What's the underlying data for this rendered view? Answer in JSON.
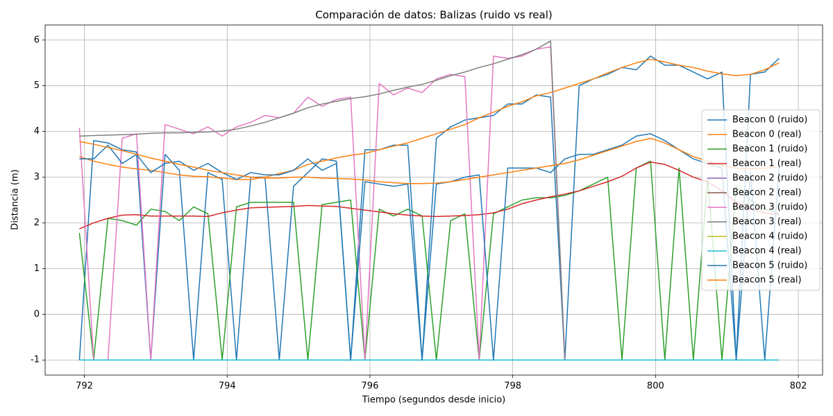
{
  "chart_data": {
    "type": "line",
    "title": "Comparación de datos: Balizas (ruido vs real)",
    "x_label": "Tiempo (segundos desde inicio)",
    "y_label": "Distancia (m)",
    "xlim": [
      791.45,
      802.34
    ],
    "ylim": [
      -1.33,
      6.33
    ],
    "xticks": [
      792,
      794,
      796,
      798,
      800,
      802
    ],
    "yticks": [
      -1,
      0,
      1,
      2,
      3,
      4,
      5,
      6
    ],
    "grid": true,
    "legend": "center right",
    "x": [
      791.93,
      792.13,
      792.33,
      792.53,
      792.73,
      792.93,
      793.13,
      793.33,
      793.53,
      793.73,
      793.93,
      794.13,
      794.33,
      794.53,
      794.73,
      794.93,
      795.13,
      795.33,
      795.53,
      795.73,
      795.93,
      796.13,
      796.33,
      796.53,
      796.73,
      796.93,
      797.13,
      797.33,
      797.53,
      797.73,
      797.93,
      798.13,
      798.33,
      798.53,
      798.73,
      798.93,
      799.13,
      799.33,
      799.53,
      799.73,
      799.93,
      800.13,
      800.33,
      800.53,
      800.73,
      800.93,
      801.13,
      801.33,
      801.53,
      801.73
    ],
    "series": [
      {
        "name": "Beacon 0 (ruido)",
        "color": "#1f77b4",
        "values": [
          -1,
          3.8,
          3.75,
          3.6,
          3.55,
          -1,
          3.5,
          3.15,
          -1,
          3.1,
          2.95,
          -1,
          3.0,
          3.0,
          -1,
          2.8,
          3.1,
          3.4,
          3.35,
          -1,
          3.6,
          3.6,
          3.7,
          3.7,
          -1,
          3.85,
          4.1,
          4.25,
          4.3,
          4.35,
          4.6,
          4.6,
          4.8,
          4.75,
          -1,
          5.0,
          5.15,
          5.25,
          5.4,
          5.35,
          5.65,
          5.45,
          5.45,
          5.3,
          5.15,
          5.3,
          -1,
          5.25,
          5.3,
          5.6
        ]
      },
      {
        "name": "Beacon 0 (real)",
        "color": "#ff7f0e",
        "values": [
          3.45,
          3.35,
          3.28,
          3.22,
          3.18,
          3.15,
          3.1,
          3.05,
          3.02,
          3.01,
          2.98,
          2.95,
          2.95,
          3.0,
          3.08,
          3.15,
          3.28,
          3.35,
          3.42,
          3.48,
          3.52,
          3.6,
          3.68,
          3.75,
          3.85,
          3.95,
          4.05,
          4.15,
          4.3,
          4.42,
          4.55,
          4.65,
          4.78,
          4.85,
          4.95,
          5.05,
          5.15,
          5.28,
          5.4,
          5.5,
          5.58,
          5.52,
          5.45,
          5.4,
          5.32,
          5.26,
          5.22,
          5.25,
          5.35,
          5.5
        ]
      },
      {
        "name": "Beacon 1 (ruido)",
        "color": "#2ca02c",
        "values": [
          1.78,
          -1,
          2.1,
          2.05,
          1.95,
          2.3,
          2.25,
          2.05,
          2.35,
          2.2,
          -1,
          2.35,
          2.45,
          2.45,
          2.45,
          2.45,
          -1,
          2.4,
          2.45,
          2.5,
          -1,
          2.3,
          2.15,
          2.3,
          2.15,
          -1,
          2.05,
          2.2,
          -1,
          2.2,
          2.35,
          2.5,
          2.55,
          2.55,
          2.6,
          2.7,
          2.85,
          3.0,
          -1,
          3.2,
          3.35,
          -1,
          3.2,
          -1,
          3.0,
          -1,
          2.8,
          2.5,
          2.3,
          2.2
        ]
      },
      {
        "name": "Beacon 1 (real)",
        "color": "#d62728",
        "values": [
          1.87,
          2.0,
          2.1,
          2.17,
          2.18,
          2.15,
          2.15,
          2.15,
          2.15,
          2.14,
          2.22,
          2.28,
          2.33,
          2.34,
          2.35,
          2.36,
          2.38,
          2.37,
          2.36,
          2.32,
          2.28,
          2.24,
          2.2,
          2.17,
          2.15,
          2.14,
          2.15,
          2.16,
          2.18,
          2.22,
          2.3,
          2.42,
          2.5,
          2.57,
          2.63,
          2.7,
          2.8,
          2.9,
          3.02,
          3.2,
          3.33,
          3.28,
          3.15,
          3.0,
          2.9,
          2.7,
          2.45,
          2.3,
          2.22,
          2.18
        ]
      },
      {
        "name": "Beacon 2 (ruido)",
        "color": "#9467bd",
        "values": [
          -1,
          -1,
          -1,
          -1,
          -1,
          -1,
          -1,
          -1,
          -1,
          -1,
          -1,
          -1,
          -1,
          -1,
          -1,
          -1,
          -1,
          -1,
          -1,
          -1,
          -1,
          -1,
          -1,
          -1,
          -1,
          -1,
          -1,
          -1,
          -1,
          -1,
          -1,
          -1,
          -1,
          -1,
          -1,
          -1,
          -1,
          -1,
          -1,
          -1,
          -1,
          -1,
          -1,
          -1,
          -1,
          -1,
          -1,
          -1,
          -1,
          -1
        ]
      },
      {
        "name": "Beacon 2 (real)",
        "color": "#8c564b",
        "values": [
          -1,
          -1,
          -1,
          -1,
          -1,
          -1,
          -1,
          -1,
          -1,
          -1,
          -1,
          -1,
          -1,
          -1,
          -1,
          -1,
          -1,
          -1,
          -1,
          -1,
          -1,
          -1,
          -1,
          -1,
          -1,
          -1,
          -1,
          -1,
          -1,
          -1,
          -1,
          -1,
          -1,
          -1,
          -1,
          -1,
          -1,
          -1,
          -1,
          -1,
          -1,
          -1,
          -1,
          -1,
          -1,
          -1,
          -1,
          -1,
          -1,
          -1
        ]
      },
      {
        "name": "Beacon 3 (ruido)",
        "color": "#e377c2",
        "values": [
          4.08,
          -1,
          -1,
          3.85,
          3.95,
          -1,
          4.15,
          4.05,
          3.95,
          4.1,
          3.9,
          4.1,
          4.2,
          4.35,
          4.3,
          4.4,
          4.75,
          4.55,
          4.7,
          4.75,
          -1,
          5.05,
          4.8,
          4.95,
          4.85,
          5.15,
          5.25,
          5.2,
          -1,
          5.65,
          5.6,
          5.65,
          5.8,
          5.85,
          -1,
          -1,
          -1,
          -1,
          -1,
          -1,
          -1,
          -1,
          -1,
          -1,
          -1,
          -1,
          -1,
          -1,
          -1,
          -1
        ]
      },
      {
        "name": "Beacon 3 (real)",
        "color": "#7f7f7f",
        "values": [
          3.9,
          3.91,
          3.92,
          3.93,
          3.94,
          3.96,
          3.97,
          3.97,
          3.98,
          3.99,
          4.01,
          4.05,
          4.12,
          4.2,
          4.3,
          4.4,
          4.52,
          4.6,
          4.66,
          4.72,
          4.76,
          4.82,
          4.9,
          4.97,
          5.03,
          5.12,
          5.22,
          5.3,
          5.4,
          5.48,
          5.58,
          5.68,
          5.8,
          5.98,
          -1,
          -1,
          -1,
          -1,
          -1,
          -1,
          -1,
          -1,
          -1,
          -1,
          -1,
          -1,
          -1,
          -1,
          -1,
          -1
        ]
      },
      {
        "name": "Beacon 4 (ruido)",
        "color": "#bcbd22",
        "values": [
          -1,
          -1,
          -1,
          -1,
          -1,
          -1,
          -1,
          -1,
          -1,
          -1,
          -1,
          -1,
          -1,
          -1,
          -1,
          -1,
          -1,
          -1,
          -1,
          -1,
          -1,
          -1,
          -1,
          -1,
          -1,
          -1,
          -1,
          -1,
          -1,
          -1,
          -1,
          -1,
          -1,
          -1,
          -1,
          -1,
          -1,
          -1,
          -1,
          -1,
          -1,
          -1,
          -1,
          -1,
          -1,
          -1,
          -1,
          -1,
          -1,
          -1
        ]
      },
      {
        "name": "Beacon 4 (real)",
        "color": "#17becf",
        "values": [
          -1,
          -1,
          -1,
          -1,
          -1,
          -1,
          -1,
          -1,
          -1,
          -1,
          -1,
          -1,
          -1,
          -1,
          -1,
          -1,
          -1,
          -1,
          -1,
          -1,
          -1,
          -1,
          -1,
          -1,
          -1,
          -1,
          -1,
          -1,
          -1,
          -1,
          -1,
          -1,
          -1,
          -1,
          -1,
          -1,
          -1,
          -1,
          -1,
          -1,
          -1,
          -1,
          -1,
          -1,
          -1,
          -1,
          -1,
          -1,
          -1,
          -1
        ]
      },
      {
        "name": "Beacon 5 (ruido)",
        "color": "#1f77b4",
        "values": [
          3.4,
          3.4,
          3.7,
          3.3,
          3.5,
          3.1,
          3.3,
          3.35,
          3.15,
          3.3,
          3.1,
          2.95,
          3.1,
          3.05,
          3.05,
          3.15,
          3.4,
          3.15,
          3.3,
          -1,
          2.9,
          2.85,
          2.8,
          2.85,
          -1,
          2.85,
          2.9,
          3.0,
          3.05,
          -1,
          3.2,
          3.2,
          3.2,
          3.1,
          3.4,
          3.5,
          3.5,
          3.6,
          3.7,
          3.9,
          3.95,
          3.8,
          3.6,
          3.4,
          3.3,
          3.2,
          -1,
          3.1,
          -1,
          3.2
        ]
      },
      {
        "name": "Beacon 5 (real)",
        "color": "#ff7f0e",
        "values": [
          3.78,
          3.72,
          3.65,
          3.58,
          3.5,
          3.42,
          3.35,
          3.28,
          3.22,
          3.15,
          3.1,
          3.05,
          3.0,
          2.98,
          2.98,
          3.0,
          3.0,
          2.98,
          2.97,
          2.96,
          2.94,
          2.9,
          2.88,
          2.86,
          2.86,
          2.87,
          2.9,
          2.95,
          3.0,
          3.05,
          3.1,
          3.15,
          3.2,
          3.25,
          3.3,
          3.38,
          3.48,
          3.58,
          3.68,
          3.78,
          3.85,
          3.75,
          3.6,
          3.45,
          3.35,
          3.25,
          3.2,
          3.18,
          3.2,
          3.22
        ]
      }
    ]
  }
}
